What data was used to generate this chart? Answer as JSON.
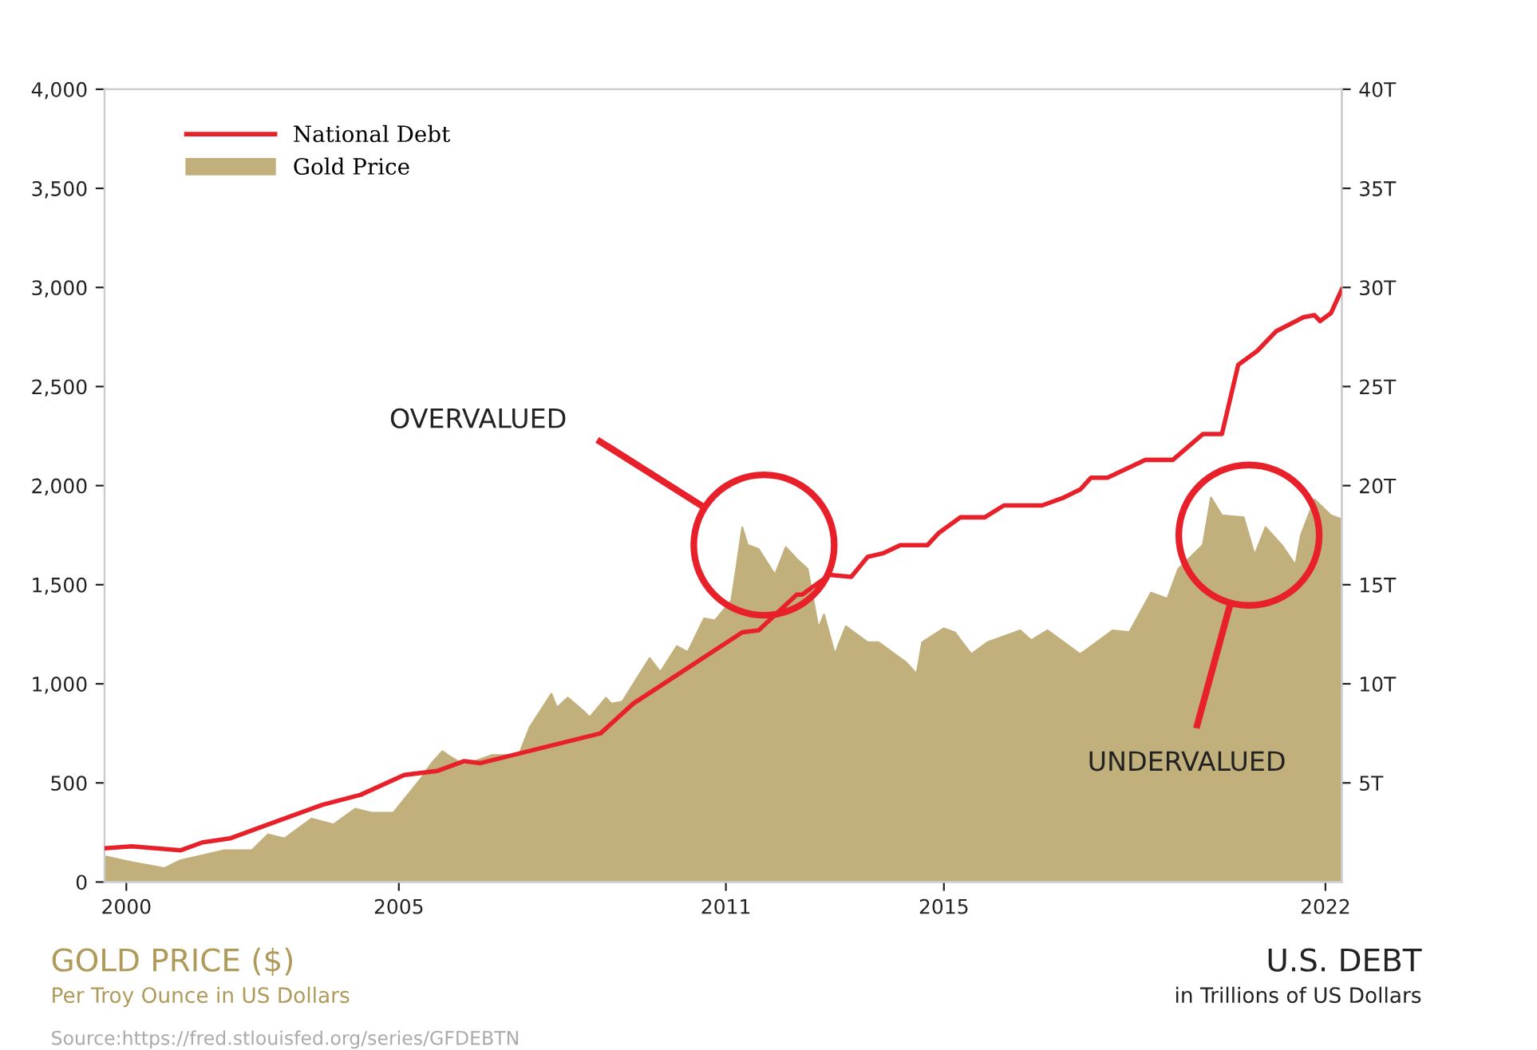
{
  "chart_data": {
    "type": "line",
    "ylabel": "GOLD PRICE ($)",
    "y2label": "U.S. DEBT",
    "annotations": [
      "Per Troy Ounce in US Dollars",
      "in Trillions of US Dollars",
      "Source:https://fred.stlouisfed.org/series/GFDEBTN",
      "OVERVALUED",
      "UNDERVALUED"
    ],
    "series": [
      {
        "name": "National Debt",
        "axis": "y2",
        "color": "#e8202a",
        "x": [
          1999.6,
          2000.1,
          2001.0,
          2001.4,
          2001.9,
          2002.6,
          2003.6,
          2004.3,
          2005.1,
          2005.7,
          2006.2,
          2006.5,
          2008.7,
          2009.3,
          2011.3,
          2011.6,
          2012.3,
          2012.4,
          2012.9,
          2013.3,
          2013.6,
          2013.9,
          2014.2,
          2014.7,
          2014.9,
          2015.3,
          2015.75,
          2016.1,
          2016.8,
          2017.2,
          2017.5,
          2017.7,
          2018.0,
          2018.7,
          2019.2,
          2019.75,
          2020.1,
          2020.4,
          2020.75,
          2021.1,
          2021.6,
          2021.8,
          2021.9,
          2022.1,
          2022.3
        ],
        "values": [
          1.7,
          1.8,
          1.6,
          2.0,
          2.2,
          2.9,
          3.9,
          4.4,
          5.4,
          5.6,
          6.1,
          6.0,
          7.5,
          9.0,
          12.6,
          12.7,
          14.5,
          14.5,
          15.5,
          15.4,
          16.4,
          16.6,
          17.0,
          17.0,
          17.6,
          18.4,
          18.4,
          19.0,
          19.0,
          19.4,
          19.8,
          20.4,
          20.4,
          21.3,
          21.3,
          22.6,
          22.6,
          26.1,
          26.8,
          27.8,
          28.5,
          28.6,
          28.3,
          28.7,
          29.9
        ]
      },
      {
        "name": "Gold Price",
        "type": "area",
        "color": "#c2b07c",
        "x": [
          1999.6,
          2000.1,
          2000.7,
          2001.0,
          2001.8,
          2002.3,
          2002.6,
          2002.9,
          2003.4,
          2003.8,
          2004.2,
          2004.5,
          2004.9,
          2005.4,
          2005.6,
          2005.8,
          2005.9,
          2006.2,
          2006.4,
          2006.7,
          2007.2,
          2007.4,
          2007.8,
          2007.9,
          2008.1,
          2008.4,
          2008.5,
          2008.8,
          2008.9,
          2009.1,
          2009.6,
          2009.8,
          2010.1,
          2010.3,
          2010.6,
          2010.8,
          2011.1,
          2011.2,
          2011.3,
          2011.4,
          2011.6,
          2011.9,
          2012.1,
          2012.3,
          2012.5,
          2012.7,
          2012.8,
          2013.0,
          2013.2,
          2013.6,
          2013.8,
          2014.1,
          2014.3,
          2014.5,
          2014.6,
          2015.0,
          2015.2,
          2015.5,
          2015.8,
          2016.4,
          2016.6,
          2016.9,
          2017.5,
          2018.1,
          2018.4,
          2018.8,
          2019.1,
          2019.3,
          2019.75,
          2019.9,
          2020.1,
          2020.5,
          2020.7,
          2020.9,
          2021.2,
          2021.45,
          2021.55,
          2021.8,
          2022.1,
          2022.3
        ],
        "values": [
          130,
          100,
          70,
          110,
          160,
          160,
          240,
          220,
          320,
          290,
          370,
          350,
          350,
          520,
          600,
          660,
          640,
          590,
          610,
          640,
          640,
          780,
          950,
          880,
          930,
          860,
          830,
          930,
          900,
          910,
          1130,
          1060,
          1190,
          1160,
          1330,
          1320,
          1420,
          1600,
          1790,
          1700,
          1680,
          1550,
          1690,
          1630,
          1580,
          1280,
          1350,
          1150,
          1290,
          1210,
          1210,
          1150,
          1110,
          1050,
          1210,
          1280,
          1260,
          1150,
          1210,
          1270,
          1220,
          1270,
          1150,
          1270,
          1260,
          1460,
          1430,
          1580,
          1700,
          1940,
          1850,
          1840,
          1650,
          1790,
          1700,
          1600,
          1750,
          1930,
          1850,
          1830
        ]
      }
    ],
    "xlim": [
      1999.6,
      2022.3
    ],
    "xticks": [
      2000,
      2005,
      2011,
      2015,
      2022
    ],
    "ylim": [
      0,
      4000
    ],
    "yticks": [
      0,
      500,
      {
        "value": 1000,
        "label": "1,000"
      },
      {
        "value": 1500,
        "label": "1,500"
      },
      {
        "value": 2000,
        "label": "2,000"
      },
      {
        "value": 2500,
        "label": "2,500"
      },
      {
        "value": 3000,
        "label": "3,000"
      },
      {
        "value": 3500,
        "label": "3,500"
      },
      {
        "value": 4000,
        "label": "4,000"
      }
    ],
    "y2lim": [
      0,
      40
    ],
    "y2ticks": [
      {
        "value": 5,
        "label": "5T"
      },
      {
        "value": 10,
        "label": "10T"
      },
      {
        "value": 15,
        "label": "15T"
      },
      {
        "value": 20,
        "label": "20T"
      },
      {
        "value": 25,
        "label": "25T"
      },
      {
        "value": 30,
        "label": "30T"
      },
      {
        "value": 35,
        "label": "35T"
      },
      {
        "value": 40,
        "label": "40T"
      }
    ],
    "legend": "top left",
    "grid": false
  }
}
